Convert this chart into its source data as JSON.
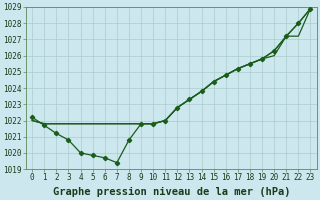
{
  "title": "Graphe pression niveau de la mer (hPa)",
  "xlabel_hours": [
    0,
    1,
    2,
    3,
    4,
    5,
    6,
    7,
    8,
    9,
    10,
    11,
    12,
    13,
    14,
    15,
    16,
    17,
    18,
    19,
    20,
    21,
    22,
    23
  ],
  "series_flat": [
    1022.0,
    1021.8,
    1021.8,
    1021.8,
    1021.8,
    1021.8,
    1021.8,
    1021.8,
    1021.8,
    1021.8,
    1021.8,
    1022.0,
    1022.8,
    1023.3,
    1023.8,
    1024.4,
    1024.8,
    1025.2,
    1025.5,
    1025.8,
    1026.0,
    1027.2,
    1027.2,
    1028.9
  ],
  "series_mid": [
    1022.0,
    1021.8,
    1021.8,
    1021.8,
    1021.8,
    1021.8,
    1021.8,
    1021.8,
    1021.8,
    1021.8,
    1021.8,
    1022.0,
    1022.8,
    1023.3,
    1023.8,
    1024.4,
    1024.8,
    1025.2,
    1025.5,
    1025.8,
    1026.3,
    1027.2,
    1028.0,
    1028.9
  ],
  "series_dip": [
    1022.2,
    1021.7,
    1021.2,
    1020.8,
    1020.0,
    1019.85,
    1019.7,
    1019.4,
    1020.8,
    1021.8,
    1021.8,
    1022.0,
    1022.8,
    1023.3,
    1023.8,
    1024.4,
    1024.8,
    1025.2,
    1025.5,
    1025.8,
    1026.3,
    1027.2,
    1028.0,
    1028.9
  ],
  "bg_color": "#cce8ee",
  "grid_color": "#aacccc",
  "line_color": "#1a5c1a",
  "ylim": [
    1019,
    1029
  ],
  "yticks": [
    1019,
    1020,
    1021,
    1022,
    1023,
    1024,
    1025,
    1026,
    1027,
    1028,
    1029
  ],
  "title_fontsize": 7.5,
  "tick_fontsize": 5.5,
  "fig_width": 3.2,
  "fig_height": 2.0,
  "dpi": 100
}
